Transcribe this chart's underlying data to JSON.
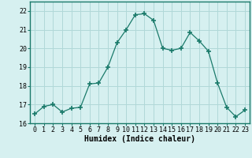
{
  "x": [
    0,
    1,
    2,
    3,
    4,
    5,
    6,
    7,
    8,
    9,
    10,
    11,
    12,
    13,
    14,
    15,
    16,
    17,
    18,
    19,
    20,
    21,
    22,
    23
  ],
  "y": [
    16.5,
    16.9,
    17.0,
    16.6,
    16.8,
    16.85,
    18.1,
    18.15,
    19.0,
    20.3,
    21.0,
    21.8,
    21.85,
    21.5,
    20.0,
    19.9,
    20.0,
    20.85,
    20.4,
    19.85,
    18.15,
    16.85,
    16.35,
    16.7
  ],
  "line_color": "#1a7a6a",
  "marker": "+",
  "marker_size": 4,
  "marker_lw": 1.2,
  "bg_color": "#d6f0f0",
  "grid_color": "#b0d8d8",
  "xlabel": "Humidex (Indice chaleur)",
  "xlabel_fontsize": 7,
  "tick_fontsize": 6,
  "ylim": [
    16,
    22.5
  ],
  "yticks": [
    16,
    17,
    18,
    19,
    20,
    21,
    22
  ],
  "xlim": [
    -0.5,
    23.5
  ],
  "xticks": [
    0,
    1,
    2,
    3,
    4,
    5,
    6,
    7,
    8,
    9,
    10,
    11,
    12,
    13,
    14,
    15,
    16,
    17,
    18,
    19,
    20,
    21,
    22,
    23
  ]
}
